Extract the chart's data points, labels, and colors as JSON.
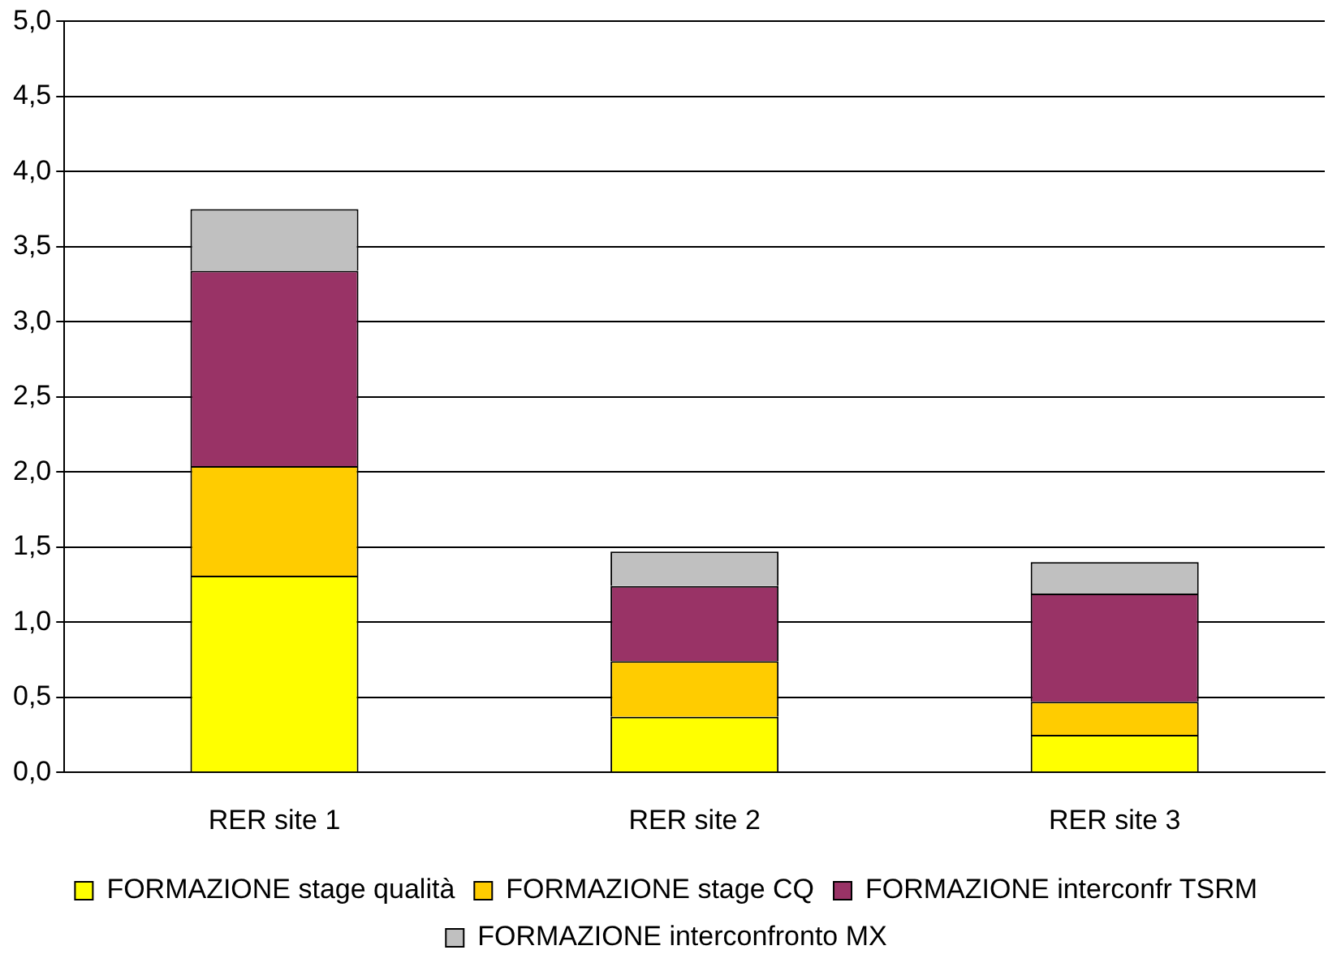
{
  "chart_data": {
    "type": "bar",
    "stacked": true,
    "categories": [
      "RER site 1",
      "RER site 2",
      "RER site 3"
    ],
    "series": [
      {
        "name": "FORMAZIONE stage qualità",
        "color": "#ffff00",
        "values": [
          1.31,
          0.37,
          0.25
        ]
      },
      {
        "name": "FORMAZIONE stage CQ",
        "color": "#ffcc00",
        "values": [
          0.73,
          0.37,
          0.22
        ]
      },
      {
        "name": "FORMAZIONE interconfr TSRM",
        "color": "#993366",
        "values": [
          1.3,
          0.5,
          0.72
        ]
      },
      {
        "name": "FORMAZIONE interconfronto MX",
        "color": "#c0c0c0",
        "values": [
          0.41,
          0.23,
          0.21
        ]
      }
    ],
    "ylim": [
      0,
      5
    ],
    "yticks": [
      {
        "value": 0,
        "label": "0,0"
      },
      {
        "value": 0.5,
        "label": "0,5"
      },
      {
        "value": 1,
        "label": "1,0"
      },
      {
        "value": 1.5,
        "label": "1,5"
      },
      {
        "value": 2,
        "label": "2,0"
      },
      {
        "value": 2.5,
        "label": "2,5"
      },
      {
        "value": 3,
        "label": "3,0"
      },
      {
        "value": 3.5,
        "label": "3,5"
      },
      {
        "value": 4,
        "label": "4,0"
      },
      {
        "value": 4.5,
        "label": "4,5"
      },
      {
        "value": 5,
        "label": "5,0"
      }
    ],
    "grid": "y",
    "legend": "bottom"
  }
}
